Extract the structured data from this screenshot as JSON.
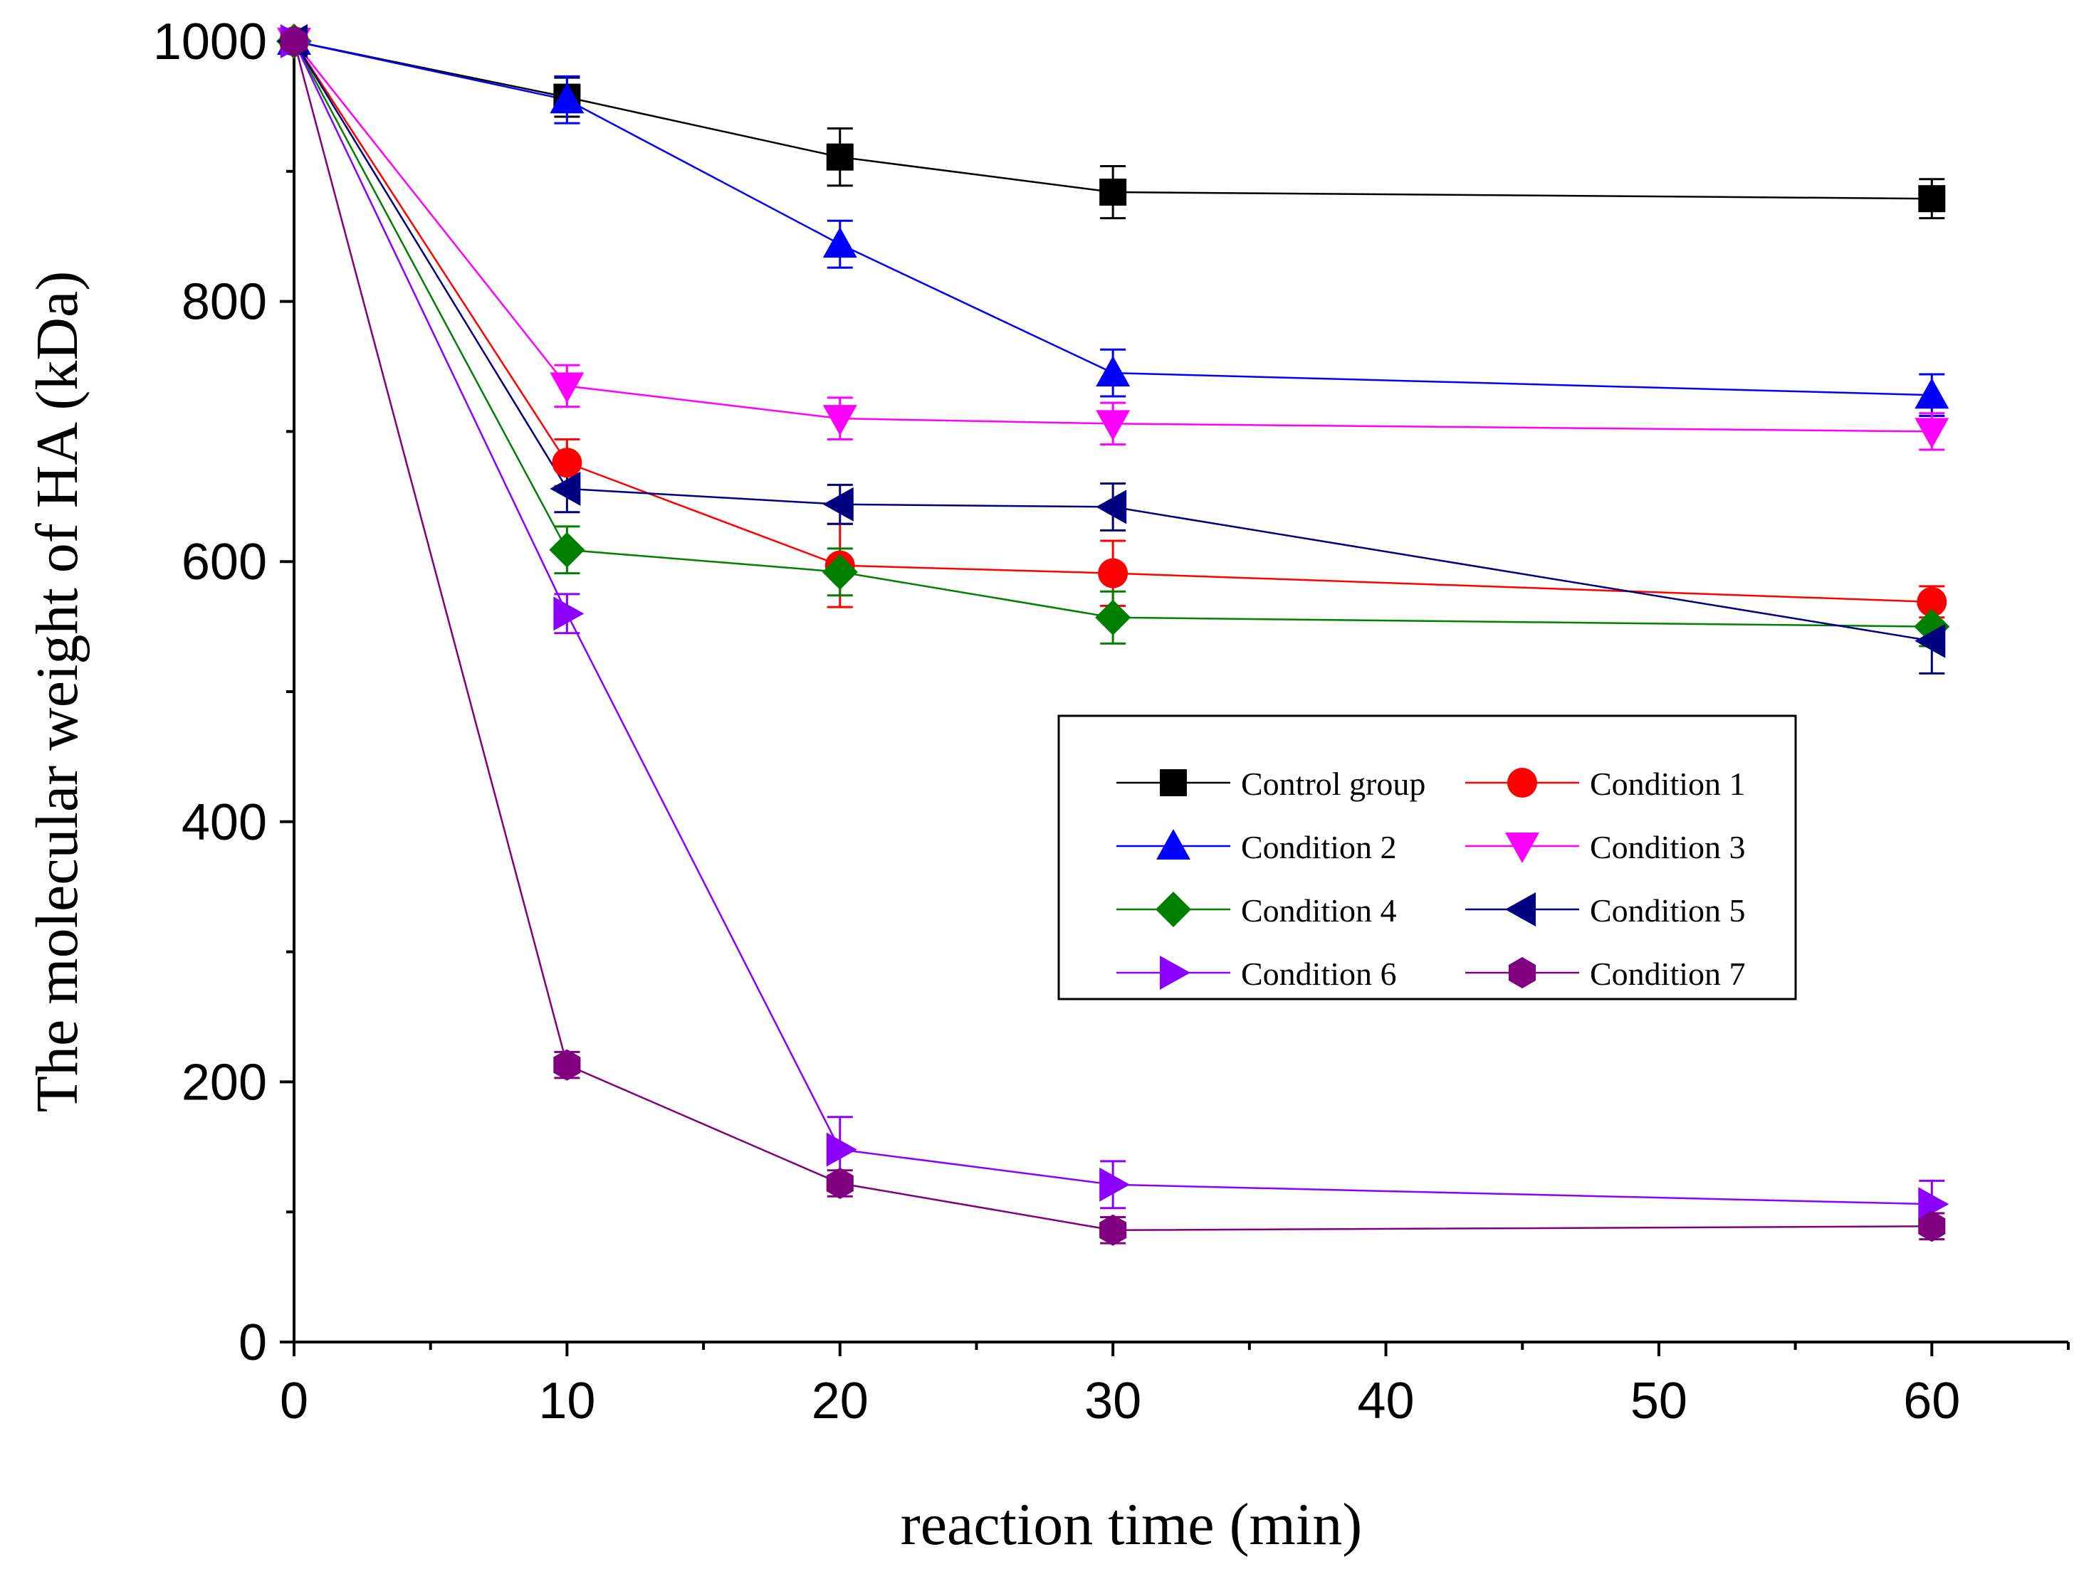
{
  "chart_data": {
    "type": "line",
    "title": "",
    "xlabel": "reaction time (min)",
    "ylabel": "The molecular weight of HA (kDa)",
    "xlim": [
      0,
      65
    ],
    "ylim": [
      0,
      1000
    ],
    "xticks": [
      0,
      10,
      20,
      30,
      40,
      50,
      60
    ],
    "yticks": [
      0,
      200,
      400,
      600,
      800,
      1000
    ],
    "x": [
      0,
      10,
      20,
      30,
      60
    ],
    "legend_position": "center-right",
    "series": [
      {
        "name": "Control group",
        "marker": "square",
        "color": "#000000",
        "values": [
          1000,
          957,
          911,
          884,
          879
        ],
        "errors": [
          0,
          15,
          22,
          20,
          15
        ]
      },
      {
        "name": "Condition 1",
        "marker": "circle",
        "color": "#ff0000",
        "values": [
          1000,
          676,
          597,
          591,
          569
        ],
        "errors": [
          0,
          18,
          32,
          25,
          12
        ]
      },
      {
        "name": "Condition 2",
        "marker": "triangle-up",
        "color": "#0000ff",
        "values": [
          1000,
          955,
          844,
          745,
          728
        ],
        "errors": [
          0,
          18,
          18,
          18,
          16
        ]
      },
      {
        "name": "Condition 3",
        "marker": "triangle-down",
        "color": "#ff00ff",
        "values": [
          1000,
          735,
          710,
          706,
          700
        ],
        "errors": [
          0,
          16,
          16,
          16,
          14
        ]
      },
      {
        "name": "Condition 4",
        "marker": "diamond",
        "color": "#008000",
        "values": [
          1000,
          609,
          592,
          557,
          550
        ],
        "errors": [
          0,
          18,
          18,
          20,
          15
        ]
      },
      {
        "name": "Condition 5",
        "marker": "triangle-left",
        "color": "#000080",
        "values": [
          1000,
          656,
          644,
          642,
          539
        ],
        "errors": [
          0,
          18,
          15,
          18,
          25
        ]
      },
      {
        "name": "Condition 6",
        "marker": "triangle-right",
        "color": "#8b00ff",
        "values": [
          1000,
          560,
          148,
          121,
          106
        ],
        "errors": [
          0,
          15,
          25,
          18,
          18
        ]
      },
      {
        "name": "Condition 7",
        "marker": "hexagon",
        "color": "#800080",
        "values": [
          1000,
          213,
          122,
          86,
          89
        ],
        "errors": [
          0,
          10,
          10,
          10,
          10
        ]
      }
    ]
  }
}
